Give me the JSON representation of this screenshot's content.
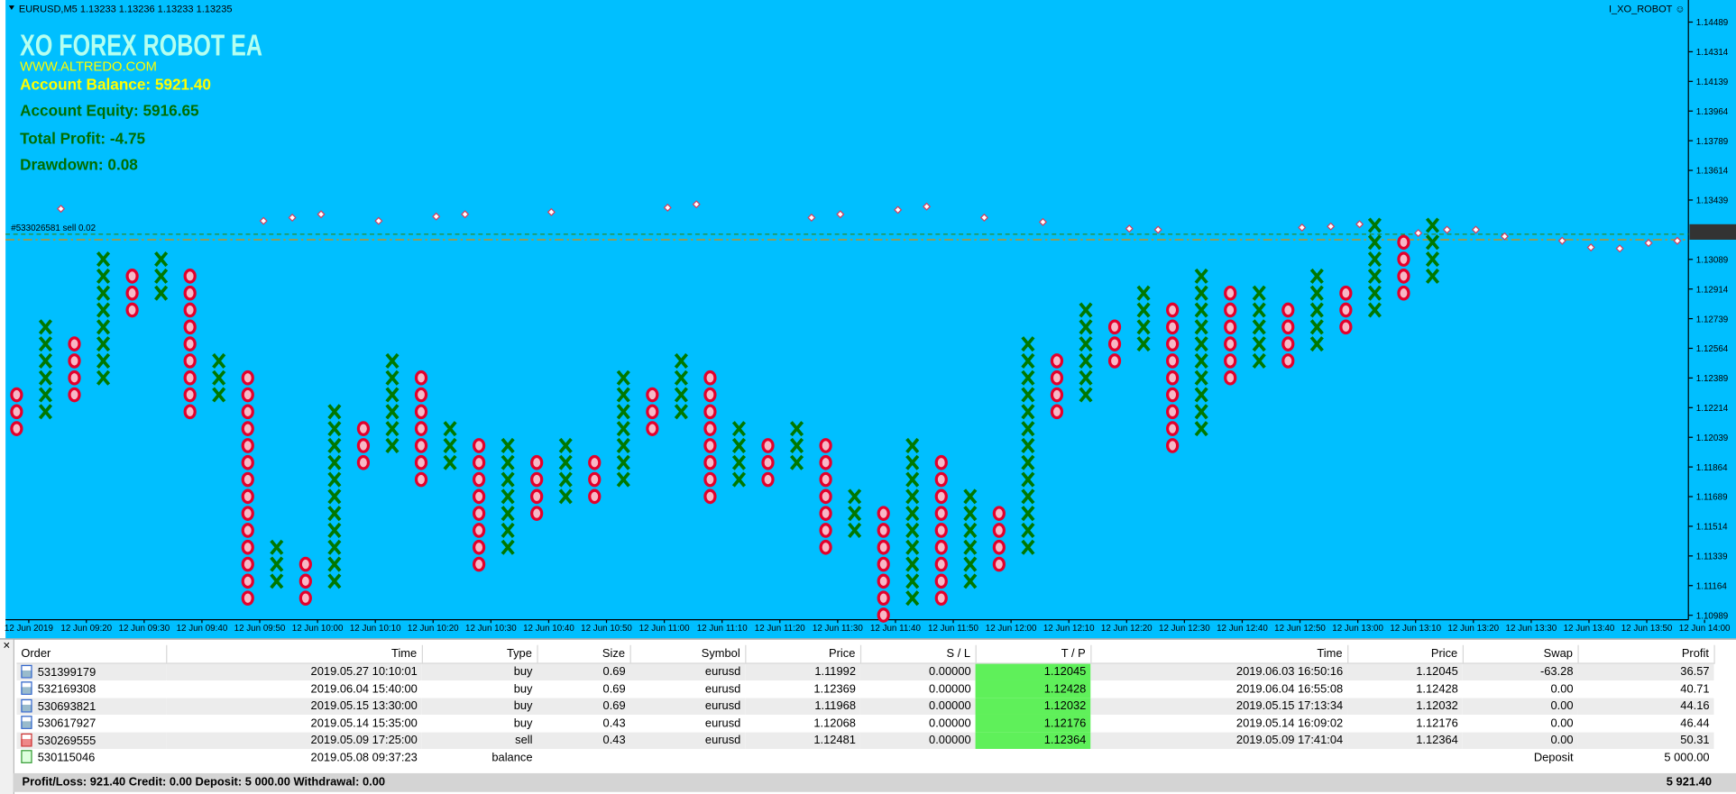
{
  "window": {
    "symbol_info": "EURUSD,M5  1.13233 1.13236 1.13233 1.13235",
    "indicator": "I_XO_ROBOT ☺"
  },
  "overlay": {
    "title": "XO FOREX ROBOT EA",
    "website": "WWW.ALTREDO.COM",
    "balance": "Account Balance: 5921.40",
    "equity": "Account Equity: 5916.65",
    "profit": "Total Profit: -4.75",
    "drawdown": "Drawdown: 0.08"
  },
  "chart": {
    "type": "point_and_figure",
    "box_size": 0.001,
    "x_color": "#007800",
    "o_color": "#e4002b",
    "ylim": [
      1.10989,
      1.14489
    ],
    "yticks": [
      1.14489,
      1.14314,
      1.14139,
      1.13964,
      1.13789,
      1.13614,
      1.13439,
      1.13089,
      1.12914,
      1.12739,
      1.12564,
      1.12389,
      1.12214,
      1.12039,
      1.11864,
      1.11689,
      1.11514,
      1.11339,
      1.11164,
      1.10989
    ],
    "trade_label": "#533026581 sell 0.02",
    "time_labels": [
      "12 Jun 2019",
      "12 Jun 09:20",
      "12 Jun 09:30",
      "12 Jun 09:40",
      "12 Jun 09:50",
      "12 Jun 10:00",
      "12 Jun 10:10",
      "12 Jun 10:20",
      "12 Jun 10:30",
      "12 Jun 10:40",
      "12 Jun 10:50",
      "12 Jun 11:00",
      "12 Jun 11:10",
      "12 Jun 11:20",
      "12 Jun 11:30",
      "12 Jun 11:40",
      "12 Jun 11:50",
      "12 Jun 12:00",
      "12 Jun 12:10",
      "12 Jun 12:20",
      "12 Jun 12:30",
      "12 Jun 12:40",
      "12 Jun 12:50",
      "12 Jun 13:00",
      "12 Jun 13:10",
      "12 Jun 13:20",
      "12 Jun 13:30",
      "12 Jun 13:40",
      "12 Jun 13:50",
      "12 Jun 14:00"
    ],
    "columns": [
      {
        "type": "O",
        "high": 1.1229,
        "low": 1.1209
      },
      {
        "type": "X",
        "high": 1.1269,
        "low": 1.1219
      },
      {
        "type": "O",
        "high": 1.1259,
        "low": 1.1229
      },
      {
        "type": "X",
        "high": 1.1309,
        "low": 1.1239
      },
      {
        "type": "O",
        "high": 1.1299,
        "low": 1.1279
      },
      {
        "type": "X",
        "high": 1.1309,
        "low": 1.1289
      },
      {
        "type": "O",
        "high": 1.1299,
        "low": 1.1219
      },
      {
        "type": "X",
        "high": 1.1249,
        "low": 1.1229
      },
      {
        "type": "O",
        "high": 1.1239,
        "low": 1.1109
      },
      {
        "type": "X",
        "high": 1.1139,
        "low": 1.1119
      },
      {
        "type": "O",
        "high": 1.1129,
        "low": 1.1109
      },
      {
        "type": "X",
        "high": 1.1219,
        "low": 1.1119
      },
      {
        "type": "O",
        "high": 1.1209,
        "low": 1.1189
      },
      {
        "type": "X",
        "high": 1.1249,
        "low": 1.1199
      },
      {
        "type": "O",
        "high": 1.1239,
        "low": 1.1179
      },
      {
        "type": "X",
        "high": 1.1209,
        "low": 1.1189
      },
      {
        "type": "O",
        "high": 1.1199,
        "low": 1.1129
      },
      {
        "type": "X",
        "high": 1.1199,
        "low": 1.1139
      },
      {
        "type": "O",
        "high": 1.1189,
        "low": 1.1159
      },
      {
        "type": "X",
        "high": 1.1199,
        "low": 1.1169
      },
      {
        "type": "O",
        "high": 1.1189,
        "low": 1.1169
      },
      {
        "type": "X",
        "high": 1.1239,
        "low": 1.1179
      },
      {
        "type": "O",
        "high": 1.1229,
        "low": 1.1209
      },
      {
        "type": "X",
        "high": 1.1249,
        "low": 1.1219
      },
      {
        "type": "O",
        "high": 1.1239,
        "low": 1.1169
      },
      {
        "type": "X",
        "high": 1.1209,
        "low": 1.1179
      },
      {
        "type": "O",
        "high": 1.1199,
        "low": 1.1179
      },
      {
        "type": "X",
        "high": 1.1209,
        "low": 1.1189
      },
      {
        "type": "O",
        "high": 1.1199,
        "low": 1.1139
      },
      {
        "type": "X",
        "high": 1.1169,
        "low": 1.1149
      },
      {
        "type": "O",
        "high": 1.1159,
        "low": 1.1099
      },
      {
        "type": "X",
        "high": 1.1199,
        "low": 1.1109
      },
      {
        "type": "O",
        "high": 1.1189,
        "low": 1.1109
      },
      {
        "type": "X",
        "high": 1.1169,
        "low": 1.1119
      },
      {
        "type": "O",
        "high": 1.1159,
        "low": 1.1129
      },
      {
        "type": "X",
        "high": 1.1259,
        "low": 1.1139
      },
      {
        "type": "O",
        "high": 1.1249,
        "low": 1.1219
      },
      {
        "type": "X",
        "high": 1.1279,
        "low": 1.1229
      },
      {
        "type": "O",
        "high": 1.1269,
        "low": 1.1249
      },
      {
        "type": "X",
        "high": 1.1289,
        "low": 1.1259
      },
      {
        "type": "O",
        "high": 1.1279,
        "low": 1.1199
      },
      {
        "type": "X",
        "high": 1.1299,
        "low": 1.1209
      },
      {
        "type": "O",
        "high": 1.1289,
        "low": 1.1239
      },
      {
        "type": "X",
        "high": 1.1289,
        "low": 1.1249
      },
      {
        "type": "O",
        "high": 1.1279,
        "low": 1.1249
      },
      {
        "type": "X",
        "high": 1.1299,
        "low": 1.1259
      },
      {
        "type": "O",
        "high": 1.1289,
        "low": 1.1269
      },
      {
        "type": "X",
        "high": 1.1329,
        "low": 1.1279
      },
      {
        "type": "O",
        "high": 1.1319,
        "low": 1.1289
      },
      {
        "type": "X",
        "high": 1.1329,
        "low": 1.1299
      }
    ]
  },
  "table": {
    "headers": [
      "Order",
      "Time",
      "Type",
      "Size",
      "Symbol",
      "Price",
      "S / L",
      "T / P",
      "Time",
      "Price",
      "Swap",
      "Profit"
    ],
    "rows": [
      [
        "531399179",
        "2019.05.27 10:10:01",
        "buy",
        "0.69",
        "eurusd",
        "1.11992",
        "0.00000",
        "1.12045",
        "2019.06.03 16:50:16",
        "1.12045",
        "-63.28",
        "36.57"
      ],
      [
        "532169308",
        "2019.06.04 15:40:00",
        "buy",
        "0.69",
        "eurusd",
        "1.12369",
        "0.00000",
        "1.12428",
        "2019.06.04 16:55:08",
        "1.12428",
        "0.00",
        "40.71"
      ],
      [
        "530693821",
        "2019.05.15 13:30:00",
        "buy",
        "0.69",
        "eurusd",
        "1.11968",
        "0.00000",
        "1.12032",
        "2019.05.15 17:13:34",
        "1.12032",
        "0.00",
        "44.16"
      ],
      [
        "530617927",
        "2019.05.14 15:35:00",
        "buy",
        "0.43",
        "eurusd",
        "1.12068",
        "0.00000",
        "1.12176",
        "2019.05.14 16:09:02",
        "1.12176",
        "0.00",
        "46.44"
      ],
      [
        "530269555",
        "2019.05.09 17:25:00",
        "sell",
        "0.43",
        "eurusd",
        "1.12481",
        "0.00000",
        "1.12364",
        "2019.05.09 17:41:04",
        "1.12364",
        "0.00",
        "50.31"
      ]
    ],
    "balance_row": {
      "order": "530115046",
      "time": "2019.05.08 09:37:23",
      "type": "balance",
      "comment": "Deposit",
      "amount": "5 000.00"
    },
    "footer": {
      "summary": "Profit/Loss: 921.40  Credit: 0.00  Deposit: 5 000.00  Withdrawal: 0.00",
      "total": "5 921.40"
    }
  }
}
